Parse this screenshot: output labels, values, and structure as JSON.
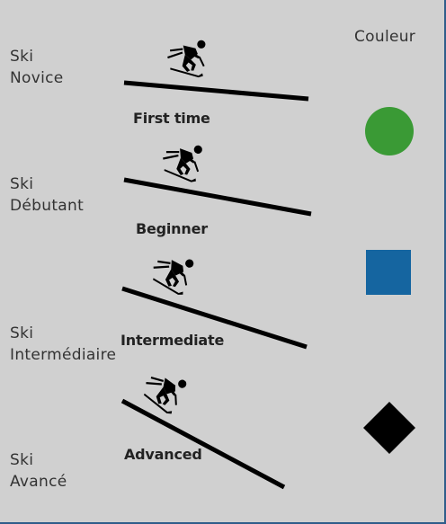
{
  "header": {
    "color_column": "Couleur"
  },
  "levels": [
    {
      "line1": "Ski",
      "line2": "Novice",
      "caption": "First time",
      "symbol": "circle",
      "color": "#3a9a35"
    },
    {
      "line1": "Ski",
      "line2": "Débutant",
      "caption": "Beginner",
      "symbol": "square",
      "color": "#1565a0"
    },
    {
      "line1": "Ski",
      "line2": "Intermédiaire",
      "caption": "Intermediate",
      "symbol": "diamond",
      "color": "#000000"
    },
    {
      "line1": "Ski",
      "line2": "Avancé",
      "caption": "Advanced",
      "symbol": "double-diamond",
      "color": "#000000"
    }
  ],
  "icons": [
    "skier-icon",
    "slope-line"
  ]
}
